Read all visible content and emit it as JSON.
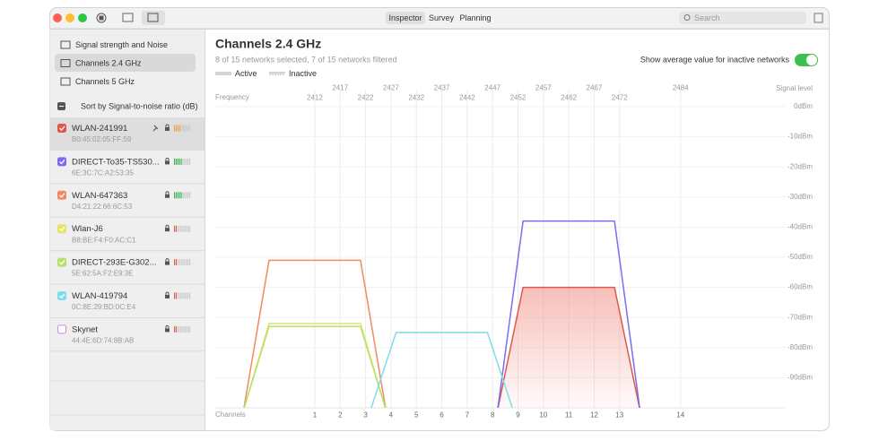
{
  "toolbar": {
    "tabs": [
      "Inspector",
      "Survey",
      "Planning"
    ],
    "search": "Search"
  },
  "sidebar": {
    "views": [
      "Signal strength and Noise",
      "Channels 2.4 GHz",
      "Channels 5 GHz"
    ],
    "sort": "Sort by Signal-to-noise ratio (dB)"
  },
  "networks": [
    {
      "name": "WLAN-241991",
      "mac": "B0:45:02:05:FF:59",
      "color": "#e0574a",
      "checked": true,
      "pinned": true,
      "selected": true,
      "bars": 4,
      "center": 2462,
      "signal": -60
    },
    {
      "name": "DIRECT-To35-TS530...",
      "mac": "6E:3C:7C:A2:53:35",
      "color": "#7b6cf0",
      "checked": true,
      "bars": 5,
      "center": 2462,
      "signal": -38
    },
    {
      "name": "WLAN-647363",
      "mac": "D4:21:22:66:6C:53",
      "color": "#ef8a62",
      "checked": true,
      "bars": 5,
      "center": 2412,
      "signal": -51
    },
    {
      "name": "Wlan-J6",
      "mac": "B8:BE:F4:F0:AC:C1",
      "color": "#e3e566",
      "checked": true,
      "bars": 2,
      "center": 2412,
      "signal": -72
    },
    {
      "name": "DIRECT-293E-G302...",
      "mac": "5E:62:5A:F2:E9:3E",
      "color": "#b5e26a",
      "checked": true,
      "bars": 2,
      "center": 2412,
      "signal": -73
    },
    {
      "name": "WLAN-419794",
      "mac": "0C:8E:29:BD:0C:E4",
      "color": "#7fdcec",
      "checked": true,
      "bars": 2,
      "center": 2437,
      "signal": -75
    },
    {
      "name": "Skynet",
      "mac": "44:4E:6D:74:8B:AB",
      "color": "#c38ee8",
      "checked": false,
      "bars": 2
    }
  ],
  "chart": {
    "title": "Channels 2.4 GHz",
    "subtitle": "8 of 15 networks selected, 7 of 15 networks filtered",
    "legend": [
      "Active",
      "Inactive"
    ],
    "toggle": "Show average value for inactive networks",
    "toggle_on": true,
    "x_label": "Frequency",
    "y_label": "Signal level",
    "channels_label": "Channels",
    "xlim": [
      2391,
      2504
    ],
    "xticks": [
      2412,
      2417,
      2422,
      2427,
      2432,
      2437,
      2442,
      2447,
      2452,
      2457,
      2462,
      2467,
      2472,
      2484
    ],
    "channels": [
      {
        "value": 2412,
        "label": "1"
      },
      {
        "value": 2417,
        "label": "2"
      },
      {
        "value": 2422,
        "label": "3"
      },
      {
        "value": 2427,
        "label": "4"
      },
      {
        "value": 2432,
        "label": "5"
      },
      {
        "value": 2437,
        "label": "6"
      },
      {
        "value": 2442,
        "label": "7"
      },
      {
        "value": 2447,
        "label": "8"
      },
      {
        "value": 2452,
        "label": "9"
      },
      {
        "value": 2457,
        "label": "10"
      },
      {
        "value": 2462,
        "label": "11"
      },
      {
        "value": 2467,
        "label": "12"
      },
      {
        "value": 2472,
        "label": "13"
      },
      {
        "value": 2484,
        "label": "14"
      }
    ],
    "ylim": [
      -100,
      0
    ],
    "yticks": [
      {
        "value": 0,
        "label": "0dBm"
      },
      {
        "value": -10,
        "label": "-10dBm"
      },
      {
        "value": -20,
        "label": "-20dBm"
      },
      {
        "value": -30,
        "label": "-30dBm"
      },
      {
        "value": -40,
        "label": "-40dBm"
      },
      {
        "value": -50,
        "label": "-50dBm"
      },
      {
        "value": -60,
        "label": "-60dBm"
      },
      {
        "value": -70,
        "label": "-70dBm"
      },
      {
        "value": -80,
        "label": "-80dBm"
      },
      {
        "value": -90,
        "label": "-90dBm"
      }
    ]
  }
}
